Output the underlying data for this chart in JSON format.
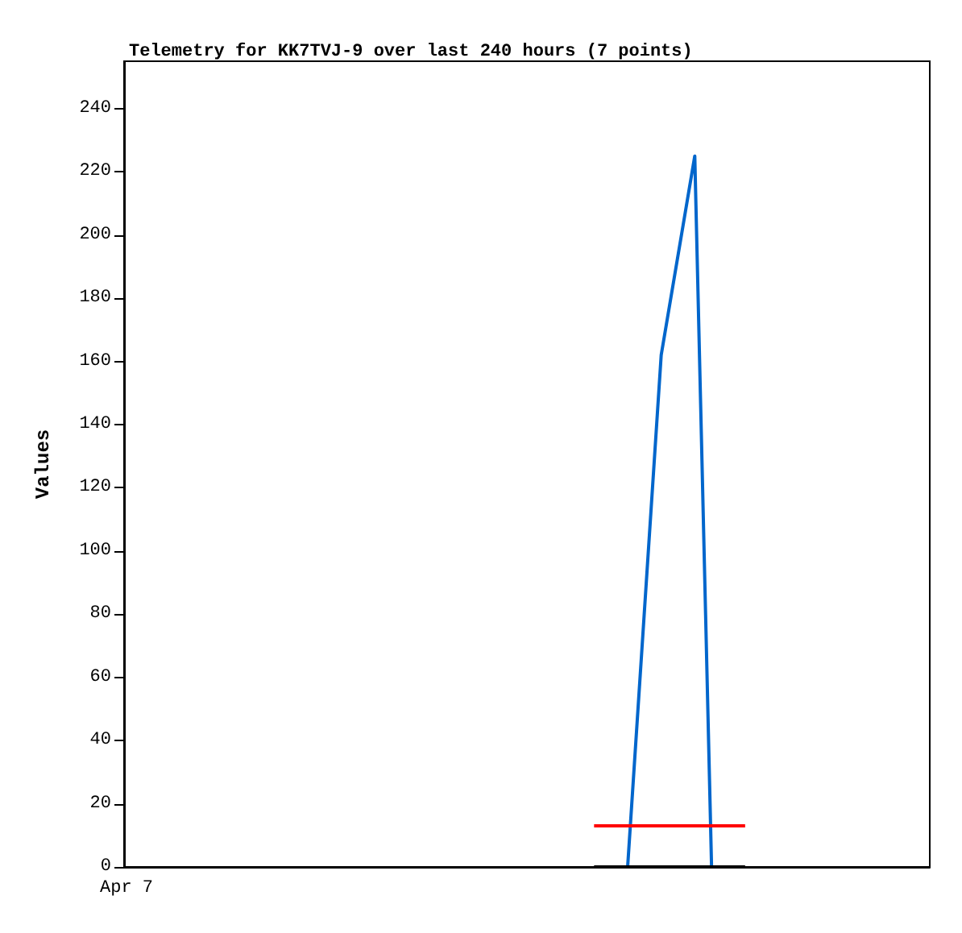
{
  "chart_data": {
    "type": "line",
    "title": "Telemetry for KK7TVJ-9 over last 240 hours (7 points)",
    "ylabel": "Values",
    "categories": [
      null,
      null,
      null,
      null,
      null,
      null,
      null,
      null,
      null,
      null,
      null,
      null,
      null,
      null,
      null,
      null,
      null,
      null,
      null,
      null,
      null,
      null,
      null,
      null,
      null,
      null,
      null,
      null,
      null,
      null,
      null,
      null,
      null,
      null,
      null,
      null,
      null,
      null,
      null,
      null,
      null,
      null,
      null,
      null,
      null,
      null,
      null,
      null,
      null
    ],
    "annotations": [
      "Apr 7"
    ],
    "ylim": [
      0,
      255
    ],
    "yticks": [
      0,
      20,
      40,
      60,
      80,
      100,
      120,
      140,
      160,
      180,
      200,
      220,
      240
    ],
    "series": [
      {
        "color": "#0066cc",
        "values": [
          null,
          null,
          null,
          null,
          null,
          null,
          null,
          null,
          null,
          null,
          null,
          null,
          null,
          null,
          null,
          null,
          null,
          null,
          null,
          null,
          null,
          null,
          null,
          null,
          null,
          null,
          null,
          null,
          null,
          null,
          0,
          null,
          162,
          null,
          225,
          0,
          null,
          null,
          null,
          null,
          null,
          null,
          null,
          null,
          null,
          null,
          null,
          null,
          null
        ]
      },
      {
        "color": "#ff0000",
        "values": [
          null,
          null,
          null,
          null,
          null,
          null,
          null,
          null,
          null,
          null,
          null,
          null,
          null,
          null,
          null,
          null,
          null,
          null,
          null,
          null,
          null,
          null,
          null,
          null,
          null,
          null,
          null,
          null,
          13,
          13,
          13,
          13,
          13,
          13,
          13,
          13,
          13,
          13,
          null,
          null,
          null,
          null,
          null,
          null,
          null,
          null,
          null,
          null,
          null
        ]
      },
      {
        "color": "#000000",
        "values": [
          null,
          null,
          null,
          null,
          null,
          null,
          null,
          null,
          null,
          null,
          null,
          null,
          null,
          null,
          null,
          null,
          null,
          null,
          null,
          null,
          null,
          null,
          null,
          null,
          null,
          null,
          null,
          null,
          0,
          0,
          0,
          0,
          0,
          0,
          0,
          0,
          0,
          0,
          null,
          null,
          null,
          null,
          null,
          null,
          null,
          null,
          null,
          null,
          null
        ]
      }
    ],
    "grid": false,
    "marker": "none",
    "line_style": "solid"
  }
}
